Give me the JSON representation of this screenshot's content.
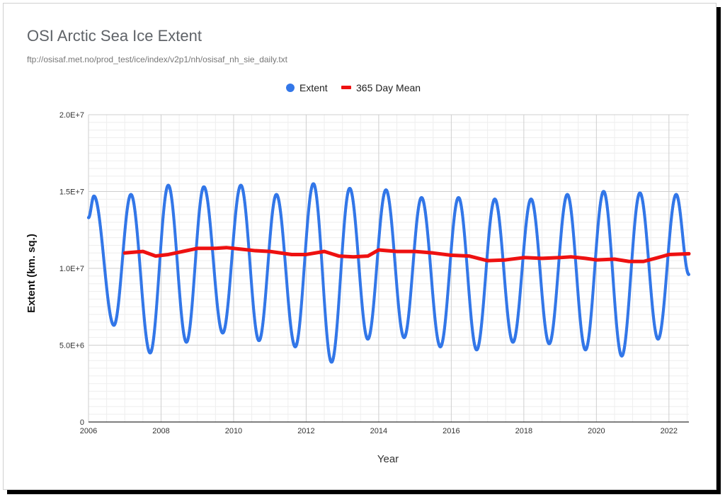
{
  "colors": {
    "extent": "#3377e8",
    "mean": "#ee1111",
    "grid_major": "#cfcfcf",
    "grid_minor": "#eeeeee",
    "axis_text": "#333333",
    "title": "#5f6368"
  },
  "chart_data": {
    "type": "scatter",
    "title": "OSI Arctic Sea Ice Extent",
    "subtitle": "ftp://osisaf.met.no/prod_test/ice/index/v2p1/nh/osisaf_nh_sie_daily.txt",
    "xlabel": "Year",
    "ylabel": "Extent (km. sq.)",
    "xlim": [
      2006,
      2022.55
    ],
    "ylim": [
      0,
      20000000
    ],
    "x_ticks": [
      2006,
      2008,
      2010,
      2012,
      2014,
      2016,
      2018,
      2020,
      2022
    ],
    "x_tick_labels": [
      "2006",
      "2008",
      "2010",
      "2012",
      "2014",
      "2016",
      "2018",
      "2020",
      "2022"
    ],
    "y_ticks": [
      0,
      5000000,
      10000000,
      15000000,
      20000000
    ],
    "y_tick_labels": [
      "0",
      "5.0E+6",
      "1.0E+7",
      "1.5E+7",
      "2.0E+7"
    ],
    "grid": true,
    "legend_position": "top-center",
    "series": [
      {
        "name": "Extent",
        "style": "dots",
        "seasonal_cycle": {
          "start_value": 13300000,
          "end_value": 9600000,
          "peaks": [
            [
              2006.15,
              14700000
            ],
            [
              2007.17,
              14800000
            ],
            [
              2008.2,
              15400000
            ],
            [
              2009.18,
              15300000
            ],
            [
              2010.2,
              15400000
            ],
            [
              2011.18,
              14800000
            ],
            [
              2012.2,
              15500000
            ],
            [
              2013.2,
              15200000
            ],
            [
              2014.2,
              15100000
            ],
            [
              2015.18,
              14600000
            ],
            [
              2016.2,
              14600000
            ],
            [
              2017.2,
              14500000
            ],
            [
              2018.2,
              14500000
            ],
            [
              2019.2,
              14800000
            ],
            [
              2020.2,
              15000000
            ],
            [
              2021.2,
              14900000
            ],
            [
              2022.2,
              14800000
            ]
          ],
          "minima": [
            [
              2006.7,
              6300000
            ],
            [
              2007.7,
              4500000
            ],
            [
              2008.7,
              5200000
            ],
            [
              2009.7,
              5800000
            ],
            [
              2010.7,
              5300000
            ],
            [
              2011.7,
              4900000
            ],
            [
              2012.7,
              3900000
            ],
            [
              2013.7,
              5400000
            ],
            [
              2014.7,
              5500000
            ],
            [
              2015.7,
              4900000
            ],
            [
              2016.7,
              4700000
            ],
            [
              2017.7,
              5200000
            ],
            [
              2018.7,
              5100000
            ],
            [
              2019.7,
              4700000
            ],
            [
              2020.7,
              4300000
            ],
            [
              2021.7,
              5400000
            ]
          ]
        }
      },
      {
        "name": "365 Day Mean",
        "style": "line",
        "x": [
          2007.0,
          2007.5,
          2007.85,
          2008.2,
          2008.6,
          2009.0,
          2009.5,
          2009.8,
          2010.2,
          2010.6,
          2011.0,
          2011.6,
          2012.0,
          2012.5,
          2012.9,
          2013.3,
          2013.7,
          2014.0,
          2014.5,
          2015.0,
          2015.5,
          2016.0,
          2016.5,
          2017.0,
          2017.5,
          2018.0,
          2018.5,
          2019.0,
          2019.3,
          2019.7,
          2020.0,
          2020.5,
          2020.9,
          2021.3,
          2021.7,
          2022.0,
          2022.55
        ],
        "values": [
          11000000,
          11100000,
          10800000,
          10900000,
          11100000,
          11300000,
          11300000,
          11350000,
          11250000,
          11150000,
          11100000,
          10900000,
          10900000,
          11100000,
          10800000,
          10750000,
          10800000,
          11200000,
          11100000,
          11100000,
          11000000,
          10850000,
          10800000,
          10500000,
          10550000,
          10700000,
          10650000,
          10700000,
          10750000,
          10650000,
          10550000,
          10600000,
          10450000,
          10450000,
          10700000,
          10900000,
          10950000
        ]
      }
    ]
  }
}
